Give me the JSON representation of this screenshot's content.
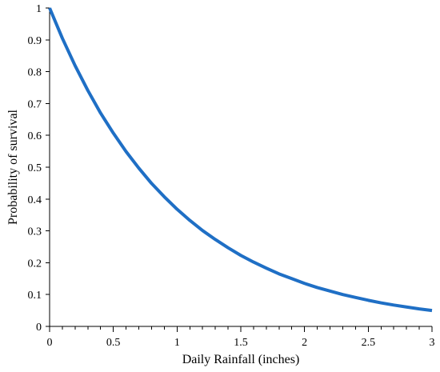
{
  "chart_data": {
    "type": "line",
    "title": "",
    "xlabel": "Daily Rainfall (inches)",
    "ylabel": "Probability of survival",
    "xlim": [
      0,
      3
    ],
    "ylim": [
      0,
      1
    ],
    "x_ticks": [
      0,
      0.5,
      1,
      1.5,
      2,
      2.5,
      3
    ],
    "x_tick_labels": [
      "0",
      "0.5",
      "1",
      "1.5",
      "2",
      "2.5",
      "3"
    ],
    "x_minor_tick_step": 0.1,
    "y_ticks": [
      0,
      0.1,
      0.2,
      0.3,
      0.4,
      0.5,
      0.6,
      0.7,
      0.8,
      0.9,
      1
    ],
    "y_tick_labels": [
      "0",
      "0.1",
      "0.2",
      "0.3",
      "0.4",
      "0.5",
      "0.6",
      "0.7",
      "0.8",
      "0.9",
      "1"
    ],
    "grid": false,
    "legend": "none",
    "series": [
      {
        "color": "#1F6FC5",
        "x": [
          0,
          0.1,
          0.2,
          0.3,
          0.4,
          0.5,
          0.6,
          0.7,
          0.8,
          0.9,
          1.0,
          1.1,
          1.2,
          1.3,
          1.4,
          1.5,
          1.6,
          1.7,
          1.8,
          1.9,
          2.0,
          2.1,
          2.2,
          2.3,
          2.4,
          2.5,
          2.6,
          2.7,
          2.8,
          2.9,
          3.0
        ],
        "y": [
          1.0,
          0.905,
          0.819,
          0.741,
          0.67,
          0.607,
          0.549,
          0.497,
          0.449,
          0.407,
          0.368,
          0.333,
          0.301,
          0.273,
          0.247,
          0.223,
          0.202,
          0.183,
          0.165,
          0.15,
          0.135,
          0.122,
          0.111,
          0.1,
          0.091,
          0.082,
          0.074,
          0.067,
          0.061,
          0.055,
          0.05
        ]
      }
    ]
  }
}
